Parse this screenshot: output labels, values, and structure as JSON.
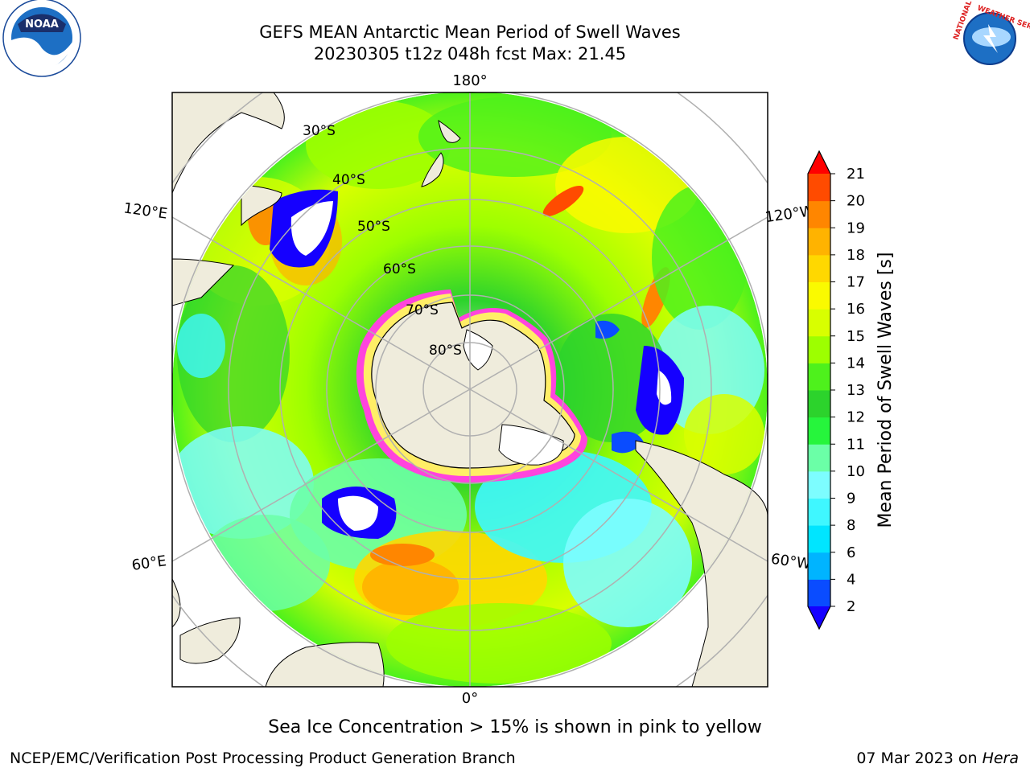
{
  "title": {
    "line1": "GEFS MEAN Antarctic Mean Period of Swell Waves",
    "line2": "20230305 t12z 048h fcst   Max: 21.45"
  },
  "map": {
    "projection": "south-polar-stereographic",
    "longitude_labels": [
      "180°",
      "120°E",
      "120°W",
      "60°E",
      "60°W",
      "0°"
    ],
    "latitude_labels": [
      "30°S",
      "40°S",
      "50°S",
      "60°S",
      "70°S",
      "80°S"
    ],
    "land_color": "#efecdc",
    "ice_color": "#ff44dd",
    "ice_edge_color": "#ffee66"
  },
  "colorbar": {
    "label": "Mean Period of Swell Waves [s]",
    "ticks": [
      "2",
      "4",
      "6",
      "8",
      "9",
      "10",
      "11",
      "12",
      "13",
      "14",
      "15",
      "16",
      "17",
      "18",
      "19",
      "20",
      "21"
    ],
    "colors": [
      "#0a4cff",
      "#00b4ff",
      "#00e5ff",
      "#3ff7ff",
      "#7dfdff",
      "#6bffa7",
      "#26f53c",
      "#2cd32c",
      "#4ef11c",
      "#9dff00",
      "#d8ff00",
      "#fafa00",
      "#ffd800",
      "#ffb300",
      "#ff8600",
      "#ff4b00",
      "#ff2200"
    ],
    "under_color": "#1500ff",
    "over_color": "#ff0000"
  },
  "caption": "Sea Ice Concentration > 15% is shown in pink to yellow",
  "footer": {
    "credit": "NCEP/EMC/Verification Post Processing Product Generation Branch",
    "date": "07 Mar 2023 on",
    "host": "Hera"
  },
  "logos": {
    "noaa": "NOAA",
    "nws_left": "NATIONAL",
    "nws_right": "WEATHER SERVICE"
  }
}
